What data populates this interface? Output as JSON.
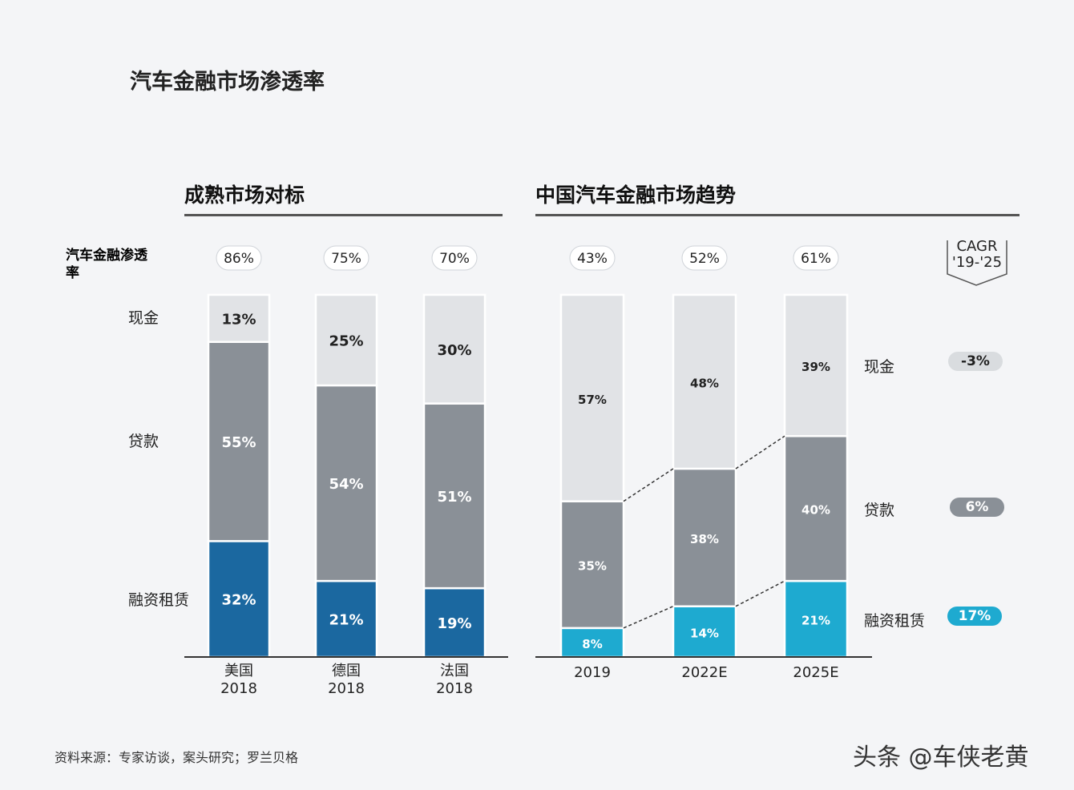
{
  "title": "汽车金融市场渗透率",
  "left_section_title": "成熟市场对标",
  "right_section_title": "中国汽车金融市场趋势",
  "penetration_label": "汽车金融渗透率",
  "left_segment_labels": {
    "cash": "现金",
    "loan": "贷款",
    "lease": "融资租赁"
  },
  "right_segment_labels": {
    "cash": "现金",
    "loan": "贷款",
    "lease": "融资租赁"
  },
  "cagr_header": {
    "line1": "CAGR",
    "line2": "'19-'25"
  },
  "cagr_values": {
    "cash": "-3%",
    "loan": "6%",
    "lease": "17%"
  },
  "source": "资料来源：专家访谈，案头研究；罗兰贝格",
  "watermark": "头条 @车侠老黄",
  "colors": {
    "cash": "#e1e3e6",
    "loan": "#8a9097",
    "lease_left": "#1b68a0",
    "lease_right": "#1eaad0",
    "badge_cash": "#d9dcdf",
    "badge_loan": "#8a9097",
    "badge_lease": "#1eaad0"
  },
  "chart_data": [
    {
      "type": "bar",
      "stacked": true,
      "title": "成熟市场对标",
      "categories": [
        "美国\n2018",
        "德国\n2018",
        "法国\n2018"
      ],
      "penetration": [
        "86%",
        "75%",
        "70%"
      ],
      "series": [
        {
          "name": "融资租赁",
          "values": [
            32,
            21,
            19
          ],
          "labels": [
            "32%",
            "21%",
            "19%"
          ]
        },
        {
          "name": "贷款",
          "values": [
            55,
            54,
            51
          ],
          "labels": [
            "55%",
            "54%",
            "51%"
          ]
        },
        {
          "name": "现金",
          "values": [
            13,
            25,
            30
          ],
          "labels": [
            "13%",
            "25%",
            "30%"
          ]
        }
      ],
      "ylim": [
        0,
        100
      ]
    },
    {
      "type": "bar",
      "stacked": true,
      "title": "中国汽车金融市场趋势",
      "categories": [
        "2019",
        "2022E",
        "2025E"
      ],
      "penetration": [
        "43%",
        "52%",
        "61%"
      ],
      "series": [
        {
          "name": "融资租赁",
          "values": [
            8,
            14,
            21
          ],
          "labels": [
            "8%",
            "14%",
            "21%"
          ]
        },
        {
          "name": "贷款",
          "values": [
            35,
            38,
            40
          ],
          "labels": [
            "35%",
            "38%",
            "40%"
          ]
        },
        {
          "name": "现金",
          "values": [
            57,
            48,
            39
          ],
          "labels": [
            "57%",
            "48%",
            "39%"
          ]
        }
      ],
      "ylim": [
        0,
        100
      ]
    }
  ]
}
